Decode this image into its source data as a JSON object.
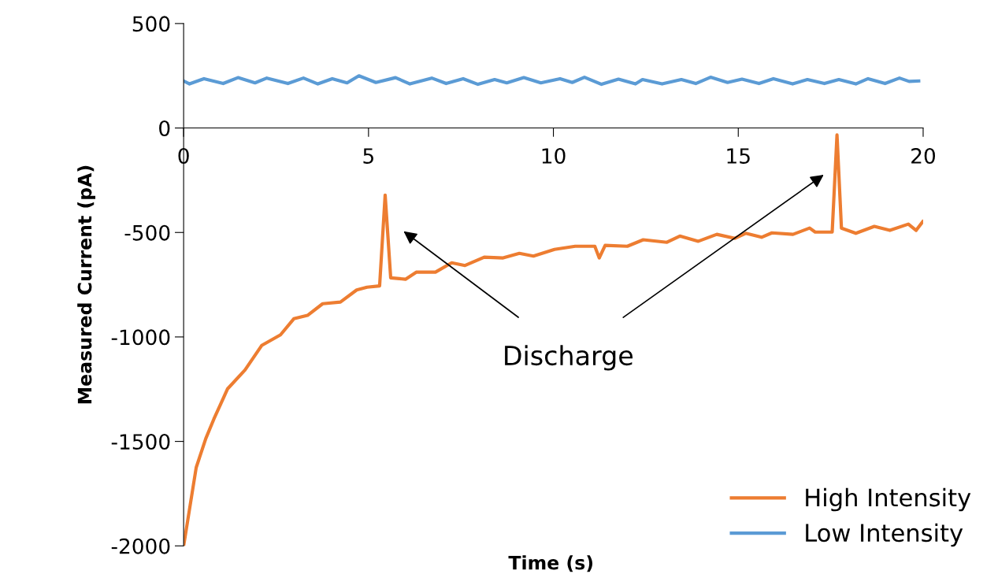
{
  "chart_data": {
    "type": "line",
    "xlabel": "Time (s)",
    "ylabel": "Measured Current (pA)",
    "xlim": [
      0,
      20
    ],
    "xticks": [
      0,
      5,
      10,
      15,
      20
    ],
    "ylim": [
      -2000,
      500
    ],
    "yticks": [
      -2000,
      -1500,
      -1000,
      -500,
      0,
      500
    ],
    "grid": false,
    "legend": "bottom right",
    "marker": "none",
    "line_style": "solid",
    "series": [
      {
        "name": "High Intensity",
        "color": "#ed7d31",
        "x": [
          0,
          0.34,
          0.6,
          0.82,
          1.19,
          1.66,
          2.11,
          2.62,
          2.98,
          3.35,
          3.76,
          4.24,
          4.68,
          4.96,
          5.3,
          5.45,
          5.6,
          6.0,
          6.29,
          6.81,
          7.25,
          7.61,
          8.13,
          8.64,
          9.08,
          9.46,
          10.03,
          10.59,
          11.12,
          11.24,
          11.4,
          12.0,
          12.43,
          13.07,
          13.42,
          13.92,
          14.42,
          14.91,
          15.2,
          15.63,
          15.91,
          16.48,
          16.93,
          17.08,
          17.54,
          17.67,
          17.79,
          18.18,
          18.68,
          19.1,
          19.6,
          19.81,
          19.99
        ],
        "values": [
          -2000,
          -1625,
          -1486,
          -1392,
          -1248,
          -1158,
          -1041,
          -990,
          -913,
          -897,
          -841,
          -833,
          -775,
          -762,
          -756,
          -321,
          -717,
          -724,
          -690,
          -690,
          -645,
          -658,
          -618,
          -622,
          -600,
          -613,
          -581,
          -566,
          -566,
          -622,
          -562,
          -566,
          -535,
          -547,
          -517,
          -542,
          -509,
          -528,
          -504,
          -523,
          -502,
          -509,
          -479,
          -498,
          -498,
          -33,
          -479,
          -504,
          -471,
          -490,
          -460,
          -490,
          -448
        ]
      },
      {
        "name": "Low Intensity",
        "color": "#5b9bd5",
        "x": [
          0,
          0.16,
          0.55,
          1.07,
          1.47,
          1.93,
          2.25,
          2.82,
          3.24,
          3.63,
          4.02,
          4.42,
          4.74,
          5.2,
          5.73,
          6.12,
          6.71,
          7.1,
          7.56,
          7.96,
          8.41,
          8.74,
          9.2,
          9.66,
          10.18,
          10.51,
          10.84,
          11.3,
          11.76,
          12.22,
          12.41,
          12.94,
          13.46,
          13.85,
          14.25,
          14.71,
          15.1,
          15.56,
          15.95,
          16.47,
          16.87,
          17.33,
          17.72,
          18.18,
          18.51,
          18.97,
          19.36,
          19.62,
          19.88
        ],
        "values": [
          225,
          211,
          236,
          213,
          241,
          216,
          239,
          213,
          239,
          211,
          236,
          216,
          250,
          218,
          241,
          211,
          239,
          213,
          236,
          209,
          232,
          216,
          241,
          216,
          236,
          218,
          243,
          209,
          234,
          211,
          232,
          211,
          232,
          213,
          243,
          218,
          234,
          213,
          236,
          211,
          232,
          213,
          232,
          211,
          236,
          213,
          239,
          223,
          225
        ]
      }
    ],
    "annotations": [
      "Discharge"
    ]
  }
}
